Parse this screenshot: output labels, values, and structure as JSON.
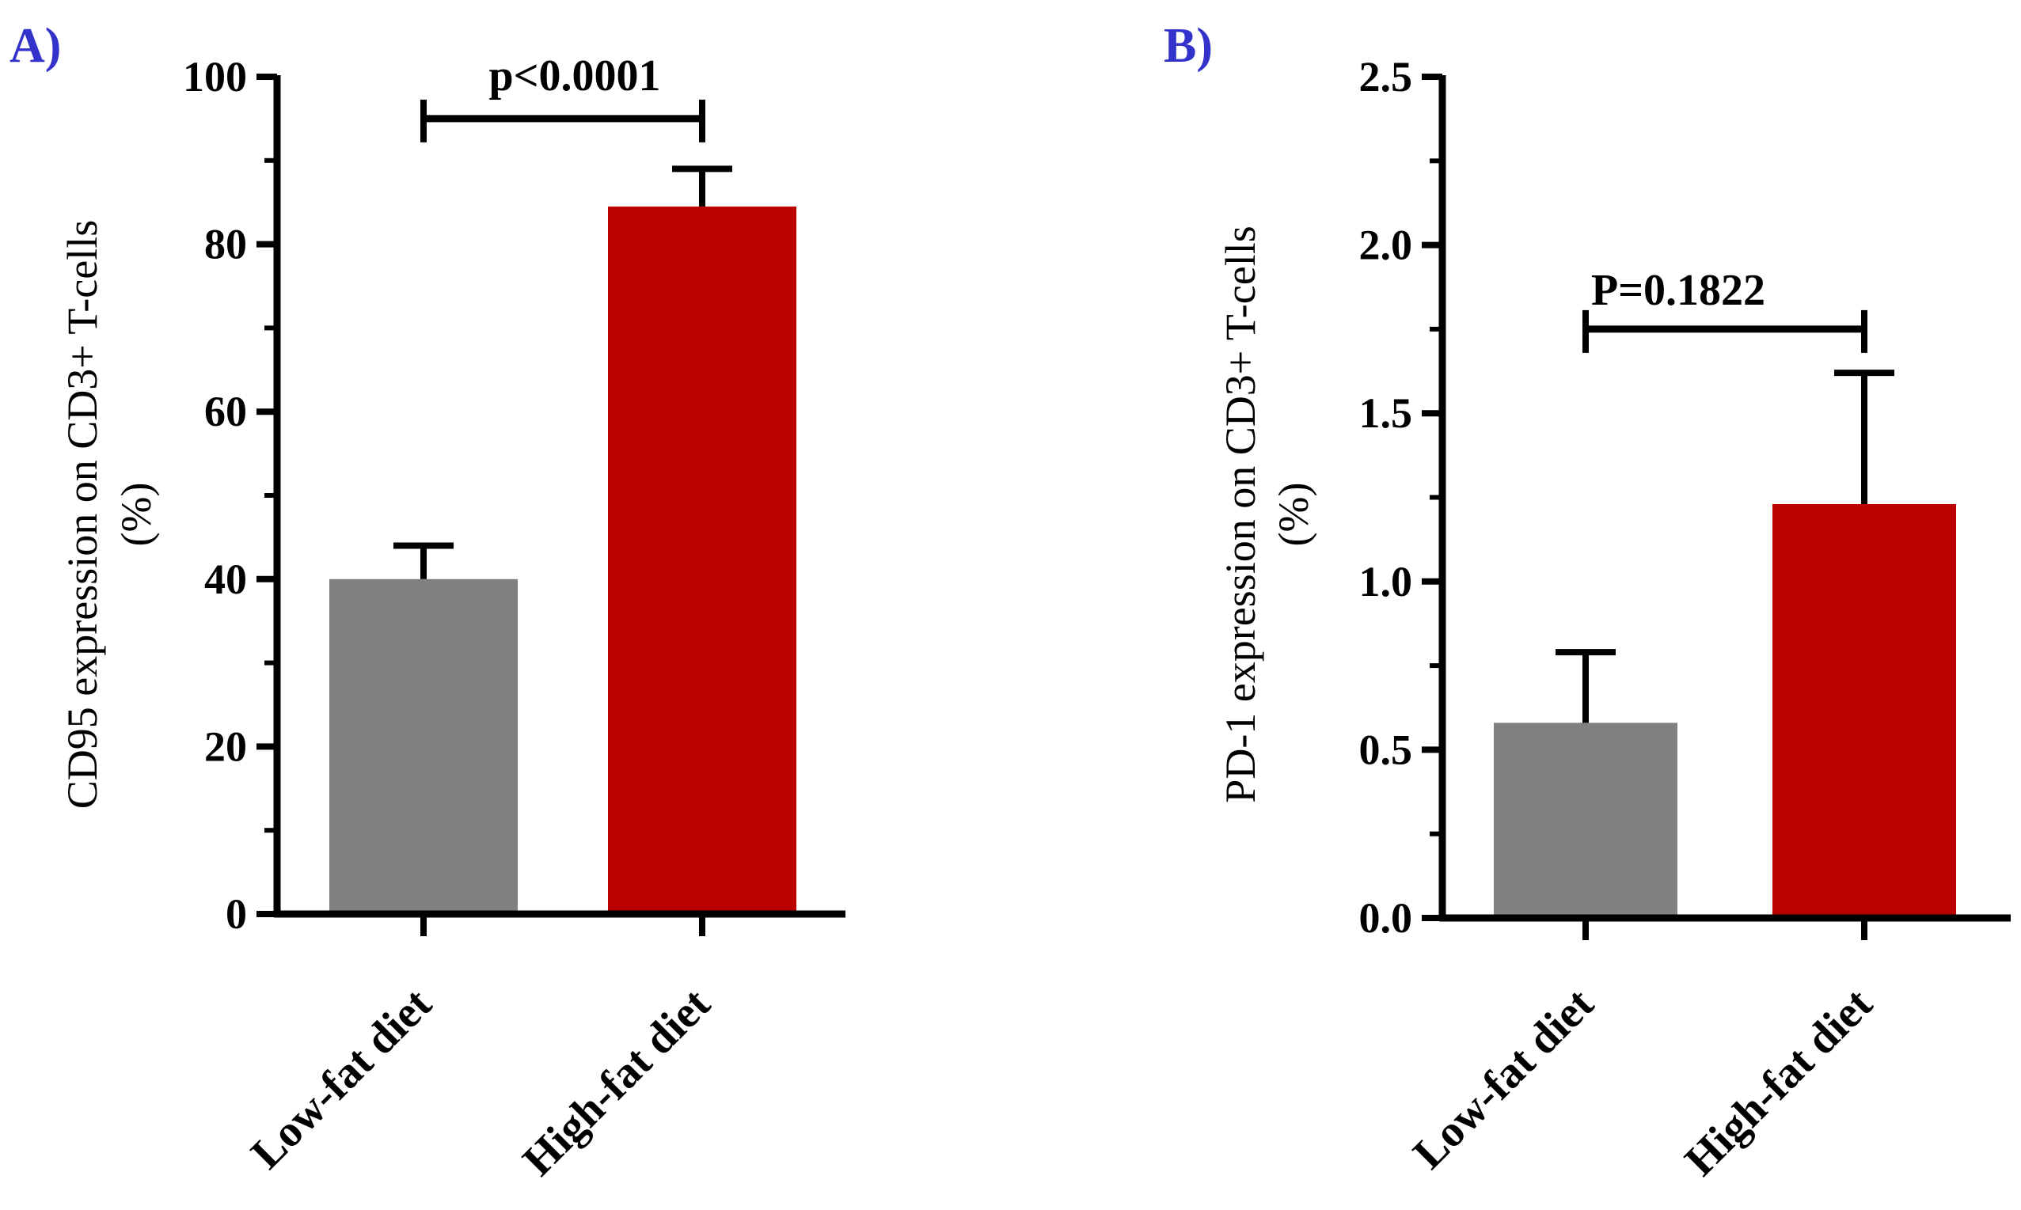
{
  "chart_data": [
    {
      "type": "bar",
      "panel_label": "A)",
      "categories": [
        "Low-fat diet",
        "High-fat diet"
      ],
      "values": [
        40,
        84.5
      ],
      "error_upper": [
        44,
        89
      ],
      "colors": [
        "#808080",
        "#bb0000"
      ],
      "ylabel_line1": "CD95 expression on CD3+ T-cells",
      "ylabel_line2": "(%)",
      "ylim": [
        0,
        100
      ],
      "ticks": [
        0,
        20,
        40,
        60,
        80,
        100
      ],
      "tick_labels": [
        "0",
        "20",
        "40",
        "60",
        "80",
        "100"
      ],
      "minor_ticks": [
        10,
        30,
        50,
        70,
        90
      ],
      "significance": {
        "label": "p<0.0001",
        "y": 95
      }
    },
    {
      "type": "bar",
      "panel_label": "B)",
      "categories": [
        "Low-fat diet",
        "High-fat diet"
      ],
      "values": [
        0.58,
        1.23
      ],
      "error_upper": [
        0.79,
        1.62
      ],
      "colors": [
        "#808080",
        "#bb0000"
      ],
      "ylabel_line1": "PD-1 expression on CD3+ T-cells",
      "ylabel_line2": "(%)",
      "ylim": [
        0,
        2.5
      ],
      "ticks": [
        0,
        0.5,
        1.0,
        1.5,
        2.0,
        2.5
      ],
      "tick_labels": [
        "0.0",
        "0.5",
        "1.0",
        "1.5",
        "2.0",
        "2.5"
      ],
      "minor_ticks": [
        0.25,
        0.75,
        1.25,
        1.75,
        2.25
      ],
      "significance": {
        "label": "P=0.1822",
        "y": 1.75
      }
    }
  ],
  "colors": {
    "panel_label": "#3333cc",
    "axis": "#000000"
  }
}
